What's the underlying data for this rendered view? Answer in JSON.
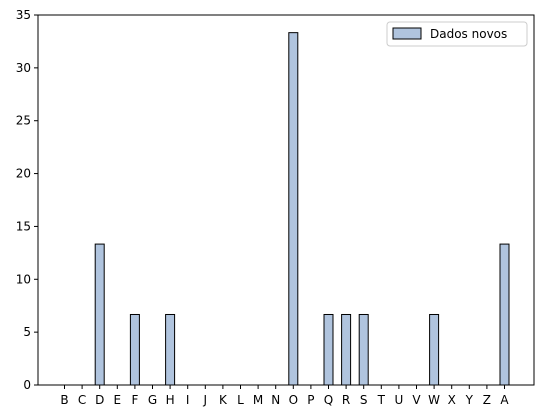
{
  "chart_data": {
    "type": "bar",
    "categories": [
      "B",
      "C",
      "D",
      "E",
      "F",
      "G",
      "H",
      "I",
      "J",
      "K",
      "L",
      "M",
      "N",
      "O",
      "P",
      "Q",
      "R",
      "S",
      "T",
      "U",
      "V",
      "W",
      "X",
      "Y",
      "Z",
      "A"
    ],
    "series": [
      {
        "name": "Dados novos",
        "values": [
          0,
          0,
          13.33,
          0,
          6.67,
          0,
          6.67,
          0,
          0,
          0,
          0,
          0,
          0,
          33.33,
          0,
          6.67,
          6.67,
          6.67,
          0,
          0,
          0,
          6.67,
          0,
          0,
          0,
          13.33
        ]
      }
    ],
    "ylim": [
      0,
      35
    ],
    "yticks": [
      0,
      5,
      10,
      15,
      20,
      25,
      30,
      35
    ],
    "grid": false,
    "legend": "top-right",
    "colors": {
      "bar_fill": "#b0c4de",
      "bar_edge": "#000000"
    }
  }
}
